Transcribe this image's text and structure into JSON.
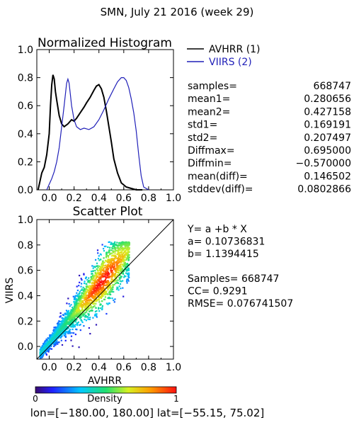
{
  "header": {
    "title": "SMN,  July 21 2016 (week 29)"
  },
  "chart_data": [
    {
      "type": "line",
      "title": "Normalized Histogram",
      "xlim": [
        -0.1,
        1.0
      ],
      "ylim": [
        0.0,
        1.0
      ],
      "x_ticks": [
        "0.0",
        "0.2",
        "0.4",
        "0.6",
        "0.8",
        "1.0"
      ],
      "y_ticks": [
        "0.0",
        "0.2",
        "0.4",
        "0.6",
        "0.8",
        "1.0"
      ],
      "legend_position": "right",
      "series": [
        {
          "name": "AVHRR (1)",
          "color": "#000000",
          "x": [
            -0.09,
            -0.06,
            -0.04,
            -0.02,
            0.0,
            0.01,
            0.02,
            0.03,
            0.04,
            0.05,
            0.06,
            0.08,
            0.1,
            0.12,
            0.15,
            0.18,
            0.2,
            0.22,
            0.25,
            0.28,
            0.3,
            0.33,
            0.36,
            0.38,
            0.4,
            0.42,
            0.44,
            0.46,
            0.48,
            0.5,
            0.52,
            0.55,
            0.58,
            0.62,
            0.66,
            0.7,
            0.75
          ],
          "values": [
            0.0,
            0.12,
            0.16,
            0.25,
            0.4,
            0.6,
            0.75,
            0.82,
            0.79,
            0.7,
            0.64,
            0.53,
            0.47,
            0.45,
            0.47,
            0.5,
            0.49,
            0.51,
            0.55,
            0.59,
            0.62,
            0.66,
            0.71,
            0.74,
            0.75,
            0.72,
            0.66,
            0.56,
            0.45,
            0.34,
            0.22,
            0.12,
            0.05,
            0.02,
            0.01,
            0.0,
            0.0
          ]
        },
        {
          "name": "VIIRS (2)",
          "color": "#1f1fb8",
          "x": [
            -0.02,
            0.0,
            0.02,
            0.04,
            0.06,
            0.08,
            0.1,
            0.12,
            0.14,
            0.15,
            0.16,
            0.17,
            0.18,
            0.2,
            0.22,
            0.25,
            0.28,
            0.32,
            0.36,
            0.4,
            0.44,
            0.48,
            0.52,
            0.55,
            0.58,
            0.6,
            0.62,
            0.64,
            0.66,
            0.68,
            0.7,
            0.72,
            0.74,
            0.76,
            0.8
          ],
          "values": [
            0.0,
            0.04,
            0.08,
            0.13,
            0.2,
            0.3,
            0.45,
            0.6,
            0.76,
            0.79,
            0.76,
            0.68,
            0.6,
            0.5,
            0.45,
            0.43,
            0.44,
            0.43,
            0.45,
            0.5,
            0.57,
            0.65,
            0.72,
            0.77,
            0.8,
            0.8,
            0.78,
            0.73,
            0.65,
            0.55,
            0.42,
            0.25,
            0.1,
            0.02,
            0.0
          ]
        }
      ]
    },
    {
      "type": "heatmap",
      "title": "Scatter Plot",
      "xlabel": "AVHRR",
      "ylabel": "VIIRS",
      "xlim": [
        -0.1,
        1.0
      ],
      "ylim": [
        -0.1,
        1.0
      ],
      "x_ticks": [
        "0.0",
        "0.2",
        "0.4",
        "0.6",
        "0.8",
        "1.0"
      ],
      "y_ticks": [
        "0.0",
        "0.2",
        "0.4",
        "0.6",
        "0.8",
        "1.0"
      ],
      "one_to_one_line": true,
      "fit": {
        "a": 0.10736831,
        "b": 1.1394415
      },
      "colorbar": {
        "label": "Density",
        "min": "0",
        "max": "1"
      }
    }
  ],
  "stats": {
    "rows": [
      {
        "label": "samples=",
        "value": "668747"
      },
      {
        "label": "mean1=",
        "value": "0.280656"
      },
      {
        "label": "mean2=",
        "value": "0.427158"
      },
      {
        "label": "std1=",
        "value": "0.169191"
      },
      {
        "label": "std2=",
        "value": "0.207497"
      },
      {
        "label": "Diffmax=",
        "value": "0.695000"
      },
      {
        "label": "Diffmin=",
        "value": "−0.570000"
      },
      {
        "label": "mean(diff)=",
        "value": "0.146502"
      },
      {
        "label": "stddev(diff)=",
        "value": "0.0802866"
      }
    ]
  },
  "scatter_stats": {
    "lines": [
      "Y= a +b * X",
      "a= 0.10736831",
      "b= 1.1394415",
      "",
      "Samples= 668747",
      "CC=  0.9291",
      "RMSE= 0.076741507"
    ]
  },
  "footer": {
    "extent": "lon=[−180.00, 180.00] lat=[−55.15, 75.02]"
  }
}
